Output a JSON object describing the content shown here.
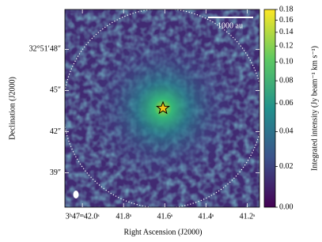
{
  "chart_data": {
    "type": "image",
    "xlabel": "Right Ascension (J2000)",
    "ylabel": "Declination (J2000)",
    "xlim": [
      42.085,
      41.14
    ],
    "xticks": [
      {
        "value": 42.0,
        "label": "3ʰ47ᵐ42.0ˢ"
      },
      {
        "value": 41.8,
        "label": "41.8ˢ"
      },
      {
        "value": 41.6,
        "label": "41.6ˢ"
      },
      {
        "value": 41.4,
        "label": "41.4ˢ"
      },
      {
        "value": 41.2,
        "label": "41.2ˢ"
      }
    ],
    "ylim": [
      36.5,
      50.9
    ],
    "yticks": [
      {
        "value": 48,
        "label": "32°51′48″"
      },
      {
        "value": 45,
        "label": "45″"
      },
      {
        "value": 42,
        "label": "42″"
      },
      {
        "value": 39,
        "label": "39″"
      }
    ],
    "colorbar_label": "Integrated intensity (Jy beam⁻¹ km s⁻¹)",
    "clim": [
      0,
      0.18
    ],
    "colorbar_scale": {
      "type": "asinh",
      "a": 0.045
    },
    "cticks": [
      {
        "value": 0,
        "label": "0.00"
      },
      {
        "value": 0.02,
        "label": "0.02"
      },
      {
        "value": 0.04,
        "label": "0.04"
      },
      {
        "value": 0.06,
        "label": "0.06"
      },
      {
        "value": 0.08,
        "label": "0.08"
      },
      {
        "value": 0.1,
        "label": "0.10"
      },
      {
        "value": 0.12,
        "label": "0.12"
      },
      {
        "value": 0.14,
        "label": "0.14"
      },
      {
        "value": 0.16,
        "label": "0.16"
      },
      {
        "value": 0.18,
        "label": "0.18"
      }
    ],
    "scalebar_label": "1000 au"
  }
}
